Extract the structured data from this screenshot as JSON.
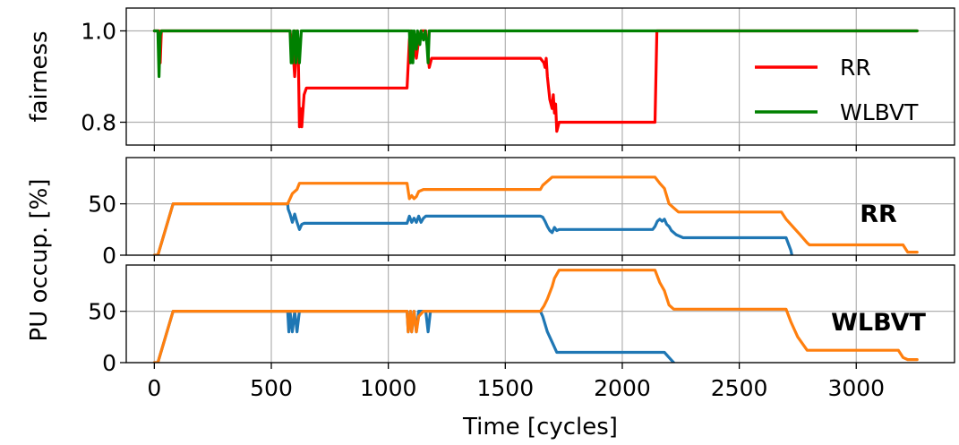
{
  "chart_data": [
    {
      "type": "line",
      "ylabel": "fairness",
      "ylim": [
        0.75,
        1.05
      ],
      "xlim": [
        -120,
        3420
      ],
      "yticks": [
        0.8,
        1.0
      ],
      "ytick_labels": [
        "0.8",
        "1.0"
      ],
      "grid": true,
      "legend": {
        "placement": "top-right",
        "entries": [
          "RR",
          "WLBVT"
        ]
      },
      "series": [
        {
          "name": "RR",
          "color": "#ff0000",
          "points": [
            [
              0,
              1.0
            ],
            [
              20,
              1.0
            ],
            [
              25,
              0.93
            ],
            [
              30,
              1.0
            ],
            [
              580,
              1.0
            ],
            [
              595,
              0.94
            ],
            [
              600,
              0.9
            ],
            [
              605,
              0.94
            ],
            [
              610,
              1.0
            ],
            [
              615,
              0.95
            ],
            [
              620,
              0.79
            ],
            [
              625,
              0.83
            ],
            [
              630,
              0.79
            ],
            [
              640,
              0.86
            ],
            [
              650,
              0.875
            ],
            [
              1080,
              0.875
            ],
            [
              1090,
              0.98
            ],
            [
              1095,
              1.0
            ],
            [
              1120,
              0.94
            ],
            [
              1130,
              0.98
            ],
            [
              1140,
              1.0
            ],
            [
              1160,
              1.0
            ],
            [
              1175,
              0.92
            ],
            [
              1185,
              0.94
            ],
            [
              1650,
              0.94
            ],
            [
              1665,
              0.93
            ],
            [
              1670,
              0.92
            ],
            [
              1675,
              0.94
            ],
            [
              1680,
              0.9
            ],
            [
              1690,
              0.85
            ],
            [
              1700,
              0.83
            ],
            [
              1705,
              0.86
            ],
            [
              1710,
              0.82
            ],
            [
              1715,
              0.84
            ],
            [
              1720,
              0.78
            ],
            [
              1725,
              0.79
            ],
            [
              1730,
              0.8
            ],
            [
              2140,
              0.8
            ],
            [
              2148,
              1.0
            ],
            [
              3260,
              1.0
            ]
          ]
        },
        {
          "name": "WLBVT",
          "color": "#008000",
          "points": [
            [
              0,
              1.0
            ],
            [
              15,
              1.0
            ],
            [
              20,
              0.9
            ],
            [
              25,
              0.99
            ],
            [
              30,
              1.0
            ],
            [
              580,
              1.0
            ],
            [
              585,
              0.93
            ],
            [
              590,
              0.93
            ],
            [
              595,
              1.0
            ],
            [
              600,
              1.0
            ],
            [
              605,
              0.93
            ],
            [
              612,
              1.0
            ],
            [
              620,
              0.93
            ],
            [
              628,
              1.0
            ],
            [
              1090,
              1.0
            ],
            [
              1095,
              0.93
            ],
            [
              1100,
              1.0
            ],
            [
              1105,
              0.93
            ],
            [
              1110,
              1.0
            ],
            [
              1120,
              0.96
            ],
            [
              1125,
              1.0
            ],
            [
              1135,
              0.97
            ],
            [
              1140,
              1.0
            ],
            [
              1150,
              0.98
            ],
            [
              1158,
              1.0
            ],
            [
              1165,
              0.97
            ],
            [
              1170,
              0.93
            ],
            [
              1175,
              1.0
            ],
            [
              3260,
              1.0
            ]
          ]
        }
      ]
    },
    {
      "type": "line",
      "annotation": "RR",
      "ylim": [
        0,
        95
      ],
      "xlim": [
        -120,
        3420
      ],
      "yticks": [
        0,
        50
      ],
      "ytick_labels": [
        "0",
        "50"
      ],
      "grid": true,
      "series": [
        {
          "color": "#1f77b4",
          "points": [
            [
              0,
              0
            ],
            [
              15,
              0
            ],
            [
              80,
              50
            ],
            [
              570,
              50
            ],
            [
              572,
              45
            ],
            [
              580,
              40
            ],
            [
              590,
              32
            ],
            [
              600,
              40
            ],
            [
              610,
              32
            ],
            [
              620,
              25
            ],
            [
              630,
              30
            ],
            [
              640,
              31
            ],
            [
              1080,
              31
            ],
            [
              1090,
              38
            ],
            [
              1100,
              32
            ],
            [
              1110,
              36
            ],
            [
              1120,
              32
            ],
            [
              1130,
              38
            ],
            [
              1140,
              32
            ],
            [
              1150,
              36
            ],
            [
              1160,
              38
            ],
            [
              1650,
              38
            ],
            [
              1660,
              37
            ],
            [
              1670,
              33
            ],
            [
              1680,
              28
            ],
            [
              1690,
              24
            ],
            [
              1700,
              22
            ],
            [
              1710,
              27
            ],
            [
              1720,
              24
            ],
            [
              1730,
              25
            ],
            [
              2130,
              25
            ],
            [
              2140,
              28
            ],
            [
              2150,
              33
            ],
            [
              2160,
              35
            ],
            [
              2170,
              33
            ],
            [
              2180,
              35
            ],
            [
              2190,
              30
            ],
            [
              2200,
              28
            ],
            [
              2210,
              24
            ],
            [
              2230,
              20
            ],
            [
              2260,
              17
            ],
            [
              2700,
              17
            ],
            [
              2720,
              5
            ],
            [
              2725,
              0
            ]
          ]
        },
        {
          "color": "#ff7f0e",
          "points": [
            [
              0,
              0
            ],
            [
              15,
              0
            ],
            [
              80,
              50
            ],
            [
              570,
              50
            ],
            [
              590,
              60
            ],
            [
              610,
              64
            ],
            [
              620,
              70
            ],
            [
              1080,
              70
            ],
            [
              1090,
              55
            ],
            [
              1100,
              58
            ],
            [
              1110,
              55
            ],
            [
              1120,
              57
            ],
            [
              1130,
              62
            ],
            [
              1150,
              64
            ],
            [
              1650,
              64
            ],
            [
              1660,
              68
            ],
            [
              1680,
              72
            ],
            [
              1700,
              76
            ],
            [
              2140,
              76
            ],
            [
              2160,
              70
            ],
            [
              2180,
              65
            ],
            [
              2200,
              50
            ],
            [
              2220,
              46
            ],
            [
              2240,
              42
            ],
            [
              2280,
              42
            ],
            [
              2680,
              42
            ],
            [
              2700,
              35
            ],
            [
              2720,
              30
            ],
            [
              2760,
              20
            ],
            [
              2790,
              12
            ],
            [
              2800,
              10
            ],
            [
              3200,
              10
            ],
            [
              3220,
              3
            ],
            [
              3260,
              3
            ]
          ]
        }
      ]
    },
    {
      "type": "line",
      "annotation": "WLBVT",
      "xlabel": "Time [cycles]",
      "ylim": [
        0,
        95
      ],
      "xlim": [
        -120,
        3420
      ],
      "xticks": [
        0,
        500,
        1000,
        1500,
        2000,
        2500,
        3000
      ],
      "xtick_labels": [
        "0",
        "500",
        "1000",
        "1500",
        "2000",
        "2500",
        "3000"
      ],
      "yticks": [
        0,
        50
      ],
      "ytick_labels": [
        "0",
        "50"
      ],
      "grid": true,
      "series": [
        {
          "color": "#1f77b4",
          "points": [
            [
              0,
              0
            ],
            [
              15,
              0
            ],
            [
              80,
              50
            ],
            [
              570,
              50
            ],
            [
              575,
              30
            ],
            [
              580,
              50
            ],
            [
              590,
              30
            ],
            [
              600,
              50
            ],
            [
              610,
              30
            ],
            [
              620,
              50
            ],
            [
              1080,
              50
            ],
            [
              1085,
              30
            ],
            [
              1095,
              50
            ],
            [
              1100,
              30
            ],
            [
              1110,
              50
            ],
            [
              1120,
              30
            ],
            [
              1130,
              50
            ],
            [
              1160,
              50
            ],
            [
              1170,
              30
            ],
            [
              1180,
              50
            ],
            [
              1650,
              50
            ],
            [
              1660,
              45
            ],
            [
              1680,
              30
            ],
            [
              1700,
              20
            ],
            [
              1720,
              10
            ],
            [
              2180,
              10
            ],
            [
              2200,
              5
            ],
            [
              2220,
              0
            ]
          ]
        },
        {
          "color": "#ff7f0e",
          "points": [
            [
              0,
              0
            ],
            [
              15,
              0
            ],
            [
              80,
              50
            ],
            [
              1080,
              50
            ],
            [
              1085,
              30
            ],
            [
              1095,
              50
            ],
            [
              1100,
              30
            ],
            [
              1110,
              50
            ],
            [
              1120,
              30
            ],
            [
              1130,
              45
            ],
            [
              1150,
              50
            ],
            [
              1650,
              50
            ],
            [
              1665,
              55
            ],
            [
              1680,
              62
            ],
            [
              1700,
              74
            ],
            [
              1710,
              82
            ],
            [
              1730,
              90
            ],
            [
              2140,
              90
            ],
            [
              2160,
              78
            ],
            [
              2180,
              70
            ],
            [
              2200,
              56
            ],
            [
              2220,
              52
            ],
            [
              2700,
              52
            ],
            [
              2720,
              40
            ],
            [
              2750,
              25
            ],
            [
              2790,
              12
            ],
            [
              2800,
              12
            ],
            [
              3180,
              12
            ],
            [
              3200,
              5
            ],
            [
              3220,
              3
            ],
            [
              3260,
              3
            ]
          ]
        }
      ]
    }
  ],
  "ylabel_shared": "PU occup. [%]"
}
